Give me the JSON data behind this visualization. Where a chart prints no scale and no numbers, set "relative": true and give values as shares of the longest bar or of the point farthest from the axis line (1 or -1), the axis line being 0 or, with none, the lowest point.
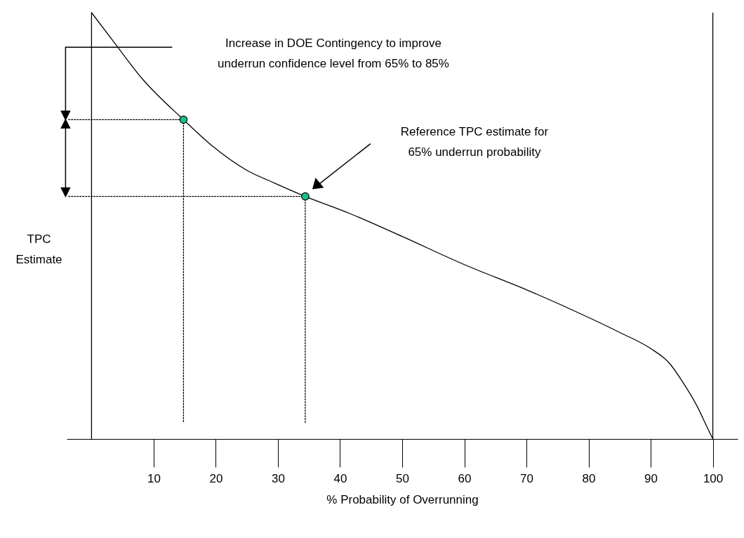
{
  "chart_data": {
    "type": "line",
    "relative": true,
    "xlabel": "% Probability of Overrunning",
    "ylabel": "TPC Estimate",
    "xlim": [
      -4,
      104
    ],
    "xticks": [
      10,
      20,
      30,
      40,
      50,
      60,
      70,
      80,
      90,
      100
    ],
    "series": [
      {
        "color": "#000000",
        "line_style": "solid",
        "x": [
          0,
          3.6,
          8.1,
          14.8,
          19.3,
          24.9,
          29.5,
          34.4,
          41.7,
          50,
          60,
          70,
          80,
          85,
          90,
          93,
          95,
          97.5,
          99,
          100
        ],
        "values": [
          1.0,
          0.931,
          0.846,
          0.749,
          0.689,
          0.631,
          0.6,
          0.569,
          0.528,
          0.475,
          0.409,
          0.35,
          0.285,
          0.25,
          0.212,
          0.178,
          0.137,
          0.076,
          0.03,
          0
        ]
      },
      {
        "type": "line",
        "color": "#000000",
        "line_style": "dotted",
        "x": [
          -3.7,
          14.8
        ],
        "values": [
          0.749,
          0.749
        ]
      },
      {
        "type": "line",
        "color": "#000000",
        "line_style": "dotted",
        "x": [
          14.8,
          14.8
        ],
        "values": [
          0.749,
          0.038
        ]
      },
      {
        "type": "line",
        "color": "#000000",
        "line_style": "dotted",
        "x": [
          -3.7,
          34.4
        ],
        "values": [
          0.569,
          0.569
        ]
      },
      {
        "type": "line",
        "color": "#000000",
        "line_style": "dotted",
        "x": [
          34.4,
          34.4
        ],
        "values": [
          0.569,
          0.038
        ]
      },
      {
        "type": "scatter",
        "color": "#19c08a",
        "marker": "circle",
        "x": [
          14.8,
          34.4
        ],
        "values": [
          0.749,
          0.569
        ]
      }
    ],
    "ref_lines": [
      {
        "axis": "x",
        "value": 0,
        "color": "#000000"
      },
      {
        "axis": "x",
        "value": 100,
        "color": "#000000"
      }
    ],
    "annotations": [
      "Increase in DOE Contingency to improve underrun confidence level from 65% to 85%",
      "Reference TPC estimate for 65% underrun probability"
    ]
  }
}
